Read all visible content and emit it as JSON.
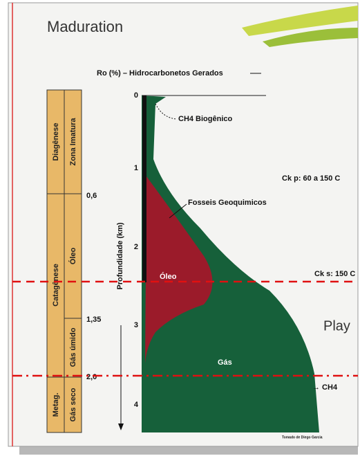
{
  "slide": {
    "title": "Maduration",
    "ro_header": "Ro (%) – Hidrocarbonetos Gerados",
    "depth_axis": {
      "label": "Profundidade (km)",
      "ticks": [
        "0",
        "1",
        "2",
        "3",
        "4"
      ]
    },
    "ro_values": [
      "0,6",
      "1,35",
      "2,0"
    ],
    "stages": {
      "outer": [
        "Diagênese",
        "Catagênese",
        "Metag."
      ],
      "inner": [
        "Zona Imatura",
        "Óleo",
        "Gás úmido",
        "Gás seco"
      ]
    },
    "annotations": {
      "biogenic": "CH4 Biogênico",
      "ckp": "Ck p: 60 a 150 C",
      "fossils": "Fosseis Geoquimicos",
      "cks": "Ck s: 150 C",
      "oil": "Óleo",
      "gas": "Gás",
      "ch4": "→ CH4",
      "play": "Play",
      "credit": "Tomado de Diego Garcia"
    }
  }
}
